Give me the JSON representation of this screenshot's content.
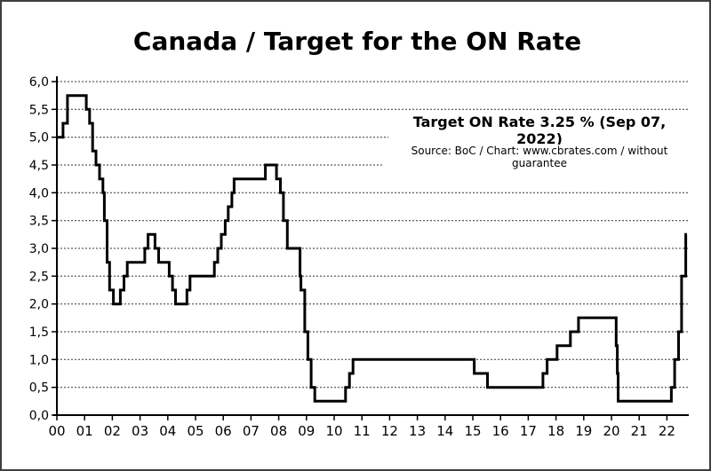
{
  "chart_data": {
    "type": "step-line",
    "title": "Canada / Target for the ON Rate",
    "annotation": "Target ON Rate 3.25 % (Sep 07, 2022)",
    "source": "Source: BoC / Chart: www.cbrates.com / without guarantee",
    "latest": {
      "rate_percent": 3.25,
      "date": "Sep 07, 2022"
    },
    "ylabel_style": "comma-decimal",
    "ylim": [
      0,
      6
    ],
    "y_tick_step": 0.5,
    "y_tick_labels": [
      "0,0",
      "0,5",
      "1,0",
      "1,5",
      "2,0",
      "2,5",
      "3,0",
      "3,5",
      "4,0",
      "4,5",
      "5,0",
      "5,5",
      "6,0"
    ],
    "x_tick_labels": [
      "00",
      "01",
      "02",
      "03",
      "04",
      "05",
      "06",
      "07",
      "08",
      "09",
      "10",
      "11",
      "12",
      "13",
      "14",
      "15",
      "16",
      "17",
      "18",
      "19",
      "20",
      "21",
      "22"
    ],
    "grid": "horizontal dashed at every 0.5",
    "line_color": "#000000",
    "axis_color": "#000000",
    "steps": [
      [
        2000.0,
        5.0
      ],
      [
        2000.22,
        5.25
      ],
      [
        2000.38,
        5.75
      ],
      [
        2001.06,
        5.5
      ],
      [
        2001.18,
        5.25
      ],
      [
        2001.29,
        4.75
      ],
      [
        2001.41,
        4.5
      ],
      [
        2001.54,
        4.25
      ],
      [
        2001.66,
        4.0
      ],
      [
        2001.71,
        3.5
      ],
      [
        2001.81,
        2.75
      ],
      [
        2001.9,
        2.25
      ],
      [
        2002.04,
        2.0
      ],
      [
        2002.29,
        2.25
      ],
      [
        2002.42,
        2.5
      ],
      [
        2002.54,
        2.75
      ],
      [
        2003.17,
        3.0
      ],
      [
        2003.29,
        3.25
      ],
      [
        2003.54,
        3.0
      ],
      [
        2003.67,
        2.75
      ],
      [
        2004.05,
        2.5
      ],
      [
        2004.17,
        2.25
      ],
      [
        2004.28,
        2.0
      ],
      [
        2004.69,
        2.25
      ],
      [
        2004.8,
        2.5
      ],
      [
        2005.68,
        2.75
      ],
      [
        2005.8,
        3.0
      ],
      [
        2005.93,
        3.25
      ],
      [
        2006.07,
        3.5
      ],
      [
        2006.18,
        3.75
      ],
      [
        2006.31,
        4.0
      ],
      [
        2006.39,
        4.25
      ],
      [
        2007.52,
        4.5
      ],
      [
        2007.92,
        4.25
      ],
      [
        2008.06,
        4.0
      ],
      [
        2008.17,
        3.5
      ],
      [
        2008.31,
        3.0
      ],
      [
        2008.77,
        2.5
      ],
      [
        2008.8,
        2.25
      ],
      [
        2008.94,
        1.5
      ],
      [
        2009.05,
        1.0
      ],
      [
        2009.17,
        0.5
      ],
      [
        2009.3,
        0.25
      ],
      [
        2010.41,
        0.5
      ],
      [
        2010.55,
        0.75
      ],
      [
        2010.68,
        1.0
      ],
      [
        2015.05,
        0.75
      ],
      [
        2015.53,
        0.5
      ],
      [
        2017.53,
        0.75
      ],
      [
        2017.68,
        1.0
      ],
      [
        2018.04,
        1.25
      ],
      [
        2018.52,
        1.5
      ],
      [
        2018.81,
        1.75
      ],
      [
        2020.17,
        1.25
      ],
      [
        2020.21,
        0.75
      ],
      [
        2020.24,
        0.25
      ],
      [
        2022.16,
        0.5
      ],
      [
        2022.28,
        1.0
      ],
      [
        2022.42,
        1.5
      ],
      [
        2022.53,
        2.5
      ],
      [
        2022.68,
        3.25
      ]
    ],
    "end_year": 2022.72
  }
}
